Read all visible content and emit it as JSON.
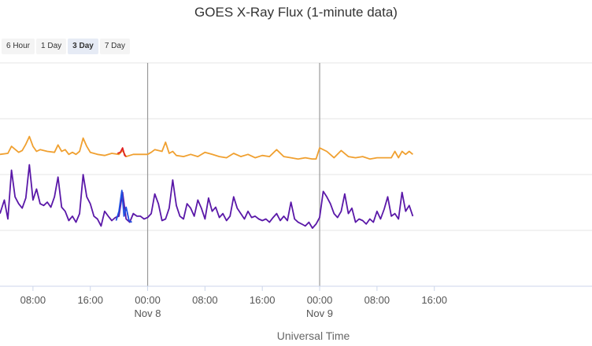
{
  "title": "GOES X-Ray Flux (1-minute data)",
  "range_buttons": [
    {
      "label": "6 Hour",
      "active": false
    },
    {
      "label": "1 Day",
      "active": false
    },
    {
      "label": "3 Day",
      "active": true
    },
    {
      "label": "7 Day",
      "active": false
    }
  ],
  "chart_data": {
    "type": "line",
    "title": "GOES X-Ray Flux (1-minute data)",
    "xlabel": "Universal Time",
    "ylabel": "",
    "xlim_hours": [
      -20.6,
      62.0
    ],
    "x_ticks": [
      {
        "hour": -16,
        "label": "08:00",
        "sublabel": ""
      },
      {
        "hour": -8,
        "label": "16:00",
        "sublabel": ""
      },
      {
        "hour": 0,
        "label": "00:00",
        "sublabel": "Nov 8"
      },
      {
        "hour": 8,
        "label": "08:00",
        "sublabel": ""
      },
      {
        "hour": 16,
        "label": "16:00",
        "sublabel": ""
      },
      {
        "hour": 24,
        "label": "00:00",
        "sublabel": "Nov 9"
      },
      {
        "hour": 32,
        "label": "08:00",
        "sublabel": ""
      },
      {
        "hour": 40,
        "label": "16:00",
        "sublabel": ""
      }
    ],
    "day_boundaries_hours": [
      0,
      24
    ],
    "grid": true,
    "colors": {
      "long_channel": "#f0a030",
      "long_highlight": "#e02020",
      "short_channel": "#5a18a8",
      "short_highlight": "#2050e0",
      "grid": "#e6e6e6",
      "day_line": "#999999",
      "axis": "#ccd6eb"
    },
    "series": [
      {
        "name": "",
        "color": "#f0a030",
        "x": [
          -20.6,
          -19.5,
          -19,
          -18,
          -17.5,
          -17,
          -16.5,
          -16,
          -15.5,
          -15,
          -14,
          -13,
          -12.5,
          -12,
          -11.5,
          -11,
          -10.5,
          -10,
          -9.5,
          -9,
          -8.5,
          -8,
          -7,
          -6,
          -5,
          -4,
          -3.5,
          -3,
          -2.5,
          -2,
          -1,
          0,
          0.5,
          1,
          2,
          2.5,
          3,
          3.5,
          4,
          5,
          6,
          7,
          8,
          9,
          10,
          11,
          12,
          13,
          14,
          15,
          16,
          17,
          18,
          19,
          20,
          21,
          22,
          23,
          23.5,
          24,
          25,
          26,
          27,
          28,
          29,
          30,
          31,
          32,
          33,
          34,
          34.5,
          35,
          35.5,
          36,
          36.5,
          37
        ],
        "y": [
          2.3e-06,
          2.4e-06,
          3.2e-06,
          2.5e-06,
          2.7e-06,
          3.5e-06,
          4.8e-06,
          3.2e-06,
          2.6e-06,
          2.8e-06,
          2.6e-06,
          2.5e-06,
          3.4e-06,
          2.6e-06,
          2.8e-06,
          2.3e-06,
          2.5e-06,
          2.3e-06,
          2.6e-06,
          4.5e-06,
          3.2e-06,
          2.5e-06,
          2.3e-06,
          2.2e-06,
          2.4e-06,
          2.3e-06,
          2.7e-06,
          2.1e-06,
          2.2e-06,
          2.3e-06,
          2.3e-06,
          2.3e-06,
          2.5e-06,
          2.8e-06,
          2.6e-06,
          3.8e-06,
          2.4e-06,
          2.6e-06,
          2.2e-06,
          2.1e-06,
          2.3e-06,
          2.1e-06,
          2.5e-06,
          2.3e-06,
          2.1e-06,
          2e-06,
          2.4e-06,
          2.1e-06,
          2.3e-06,
          2e-06,
          2.2e-06,
          2.1e-06,
          2.8e-06,
          2.1e-06,
          2e-06,
          1.9e-06,
          2e-06,
          1.9e-06,
          1.9e-06,
          3e-06,
          2.6e-06,
          2e-06,
          2.7e-06,
          2.1e-06,
          2e-06,
          2.1e-06,
          1.9e-06,
          2e-06,
          2e-06,
          2e-06,
          2.6e-06,
          2e-06,
          2.6e-06,
          2.3e-06,
          2.6e-06,
          2.3e-06
        ]
      },
      {
        "name": "",
        "color": "#5a18a8",
        "x": [
          -20.6,
          -20,
          -19.5,
          -19,
          -18.5,
          -18,
          -17.5,
          -17,
          -16.5,
          -16,
          -15.5,
          -15,
          -14.5,
          -14,
          -13.5,
          -13,
          -12.5,
          -12,
          -11.5,
          -11,
          -10.5,
          -10,
          -9.5,
          -9,
          -8.5,
          -8,
          -7.5,
          -7,
          -6.5,
          -6,
          -5.5,
          -5,
          -4.5,
          -4,
          -3.5,
          -3,
          -2.5,
          -2,
          -1.5,
          -1,
          -0.5,
          0,
          0.5,
          1,
          1.5,
          2,
          2.5,
          3,
          3.5,
          4,
          4.5,
          5,
          5.5,
          6,
          6.5,
          7,
          7.5,
          8,
          8.5,
          9,
          9.5,
          10,
          10.5,
          11,
          11.5,
          12,
          12.5,
          13,
          13.5,
          14,
          14.5,
          15,
          15.5,
          16,
          16.5,
          17,
          17.5,
          18,
          18.5,
          19,
          19.5,
          20,
          20.5,
          21,
          21.5,
          22,
          22.5,
          23,
          23.5,
          24,
          24.5,
          25,
          25.5,
          26,
          26.5,
          27,
          27.5,
          28,
          28.5,
          29,
          29.5,
          30,
          30.5,
          31,
          31.5,
          32,
          32.5,
          33,
          33.5,
          34,
          34.5,
          35,
          35.5,
          36,
          36.5,
          37
        ],
        "y": [
          2e-07,
          3.5e-07,
          1.6e-07,
          1.2e-06,
          4e-07,
          3e-07,
          2.5e-07,
          3.8e-07,
          1.5e-06,
          3.5e-07,
          5.5e-07,
          3e-07,
          2.8e-07,
          3.2e-07,
          2.6e-07,
          4e-07,
          9e-07,
          2.6e-07,
          2.2e-07,
          1.5e-07,
          1.8e-07,
          1.4e-07,
          2e-07,
          1e-06,
          4e-07,
          3e-07,
          1.8e-07,
          1.6e-07,
          1.2e-07,
          2.2e-07,
          1.8e-07,
          1.5e-07,
          1.7e-07,
          1.8e-07,
          4.8e-07,
          1.6e-07,
          1.4e-07,
          2e-07,
          1.8e-07,
          1.8e-07,
          1.6e-07,
          1.7e-07,
          2e-07,
          4.5e-07,
          3e-07,
          1.5e-07,
          1.6e-07,
          2.5e-07,
          8e-07,
          2.8e-07,
          1.8e-07,
          1.6e-07,
          3e-07,
          2.5e-07,
          1.8e-07,
          3.5e-07,
          2.5e-07,
          1.6e-07,
          3.8e-07,
          2.2e-07,
          2.6e-07,
          1.7e-07,
          2e-07,
          1.5e-07,
          1.8e-07,
          4e-07,
          2.5e-07,
          2e-07,
          1.6e-07,
          2.2e-07,
          1.7e-07,
          1.8e-07,
          1.6e-07,
          1.5e-07,
          1.6e-07,
          1.4e-07,
          1.7e-07,
          2e-07,
          1.5e-07,
          1.8e-07,
          1.5e-07,
          3.2e-07,
          1.6e-07,
          1.4e-07,
          1.3e-07,
          1.2e-07,
          1.4e-07,
          1.1e-07,
          1.3e-07,
          1.7e-07,
          5e-07,
          4e-07,
          3e-07,
          2e-07,
          1.7e-07,
          2.2e-07,
          4.5e-07,
          2e-07,
          2.5e-07,
          1.4e-07,
          1.6e-07,
          1.5e-07,
          1.3e-07,
          1.6e-07,
          1.4e-07,
          2.2e-07,
          1.6e-07,
          2.4e-07,
          4e-07,
          1.8e-07,
          2e-07,
          1.6e-07,
          4.8e-07,
          2.2e-07,
          2.8e-07,
          1.8e-07
        ]
      }
    ],
    "highlight_segments": [
      {
        "series": 0,
        "color": "#e02020",
        "x": [
          -4.2,
          -3.8,
          -3.5,
          -3.2,
          -3.0
        ],
        "y": [
          2.4e-06,
          2.5e-06,
          3e-06,
          2.2e-06,
          2.1e-06
        ]
      },
      {
        "series": 1,
        "color": "#2050e0",
        "x": [
          -4.4,
          -4.0,
          -3.6,
          -3.3,
          -3.0,
          -2.6,
          -2.2
        ],
        "y": [
          1.5e-07,
          2.2e-07,
          5.2e-07,
          1.8e-07,
          2.6e-07,
          1.5e-07,
          1.4e-07
        ]
      }
    ],
    "y_log": true,
    "ylim": [
      1e-08,
      0.0001
    ]
  }
}
